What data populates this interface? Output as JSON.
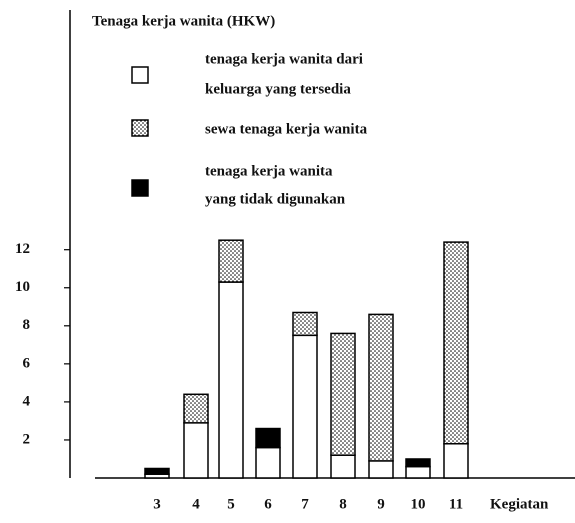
{
  "chart_data": {
    "type": "stacked_bar",
    "title": "Tenaga kerja wanita (HKW)",
    "x_label": "Kegiatan",
    "categories": [
      3,
      4,
      5,
      6,
      7,
      8,
      9,
      10,
      11
    ],
    "series": [
      {
        "name": [
          "tenaga kerja wanita dari",
          "keluarga yang tersedia"
        ],
        "color": "#ffffff",
        "values": [
          0.2,
          2.9,
          10.3,
          1.6,
          7.5,
          1.2,
          0.9,
          0.6,
          1.8
        ]
      },
      {
        "name": [
          "sewa tenaga kerja wanita"
        ],
        "color": "#000000",
        "pattern": "dots",
        "values": [
          0,
          1.5,
          2.2,
          0,
          1.2,
          6.4,
          7.7,
          0,
          10.6
        ]
      },
      {
        "name": [
          "tenaga kerja wanita",
          "yang tidak digunakan"
        ],
        "color": "#000000",
        "values": [
          0.3,
          0,
          0,
          1.0,
          0,
          0,
          0,
          0.4,
          0
        ]
      }
    ],
    "ylim": [
      0,
      24.6
    ],
    "yticks": [
      2,
      4,
      6,
      8,
      10,
      12
    ],
    "grid": false
  }
}
